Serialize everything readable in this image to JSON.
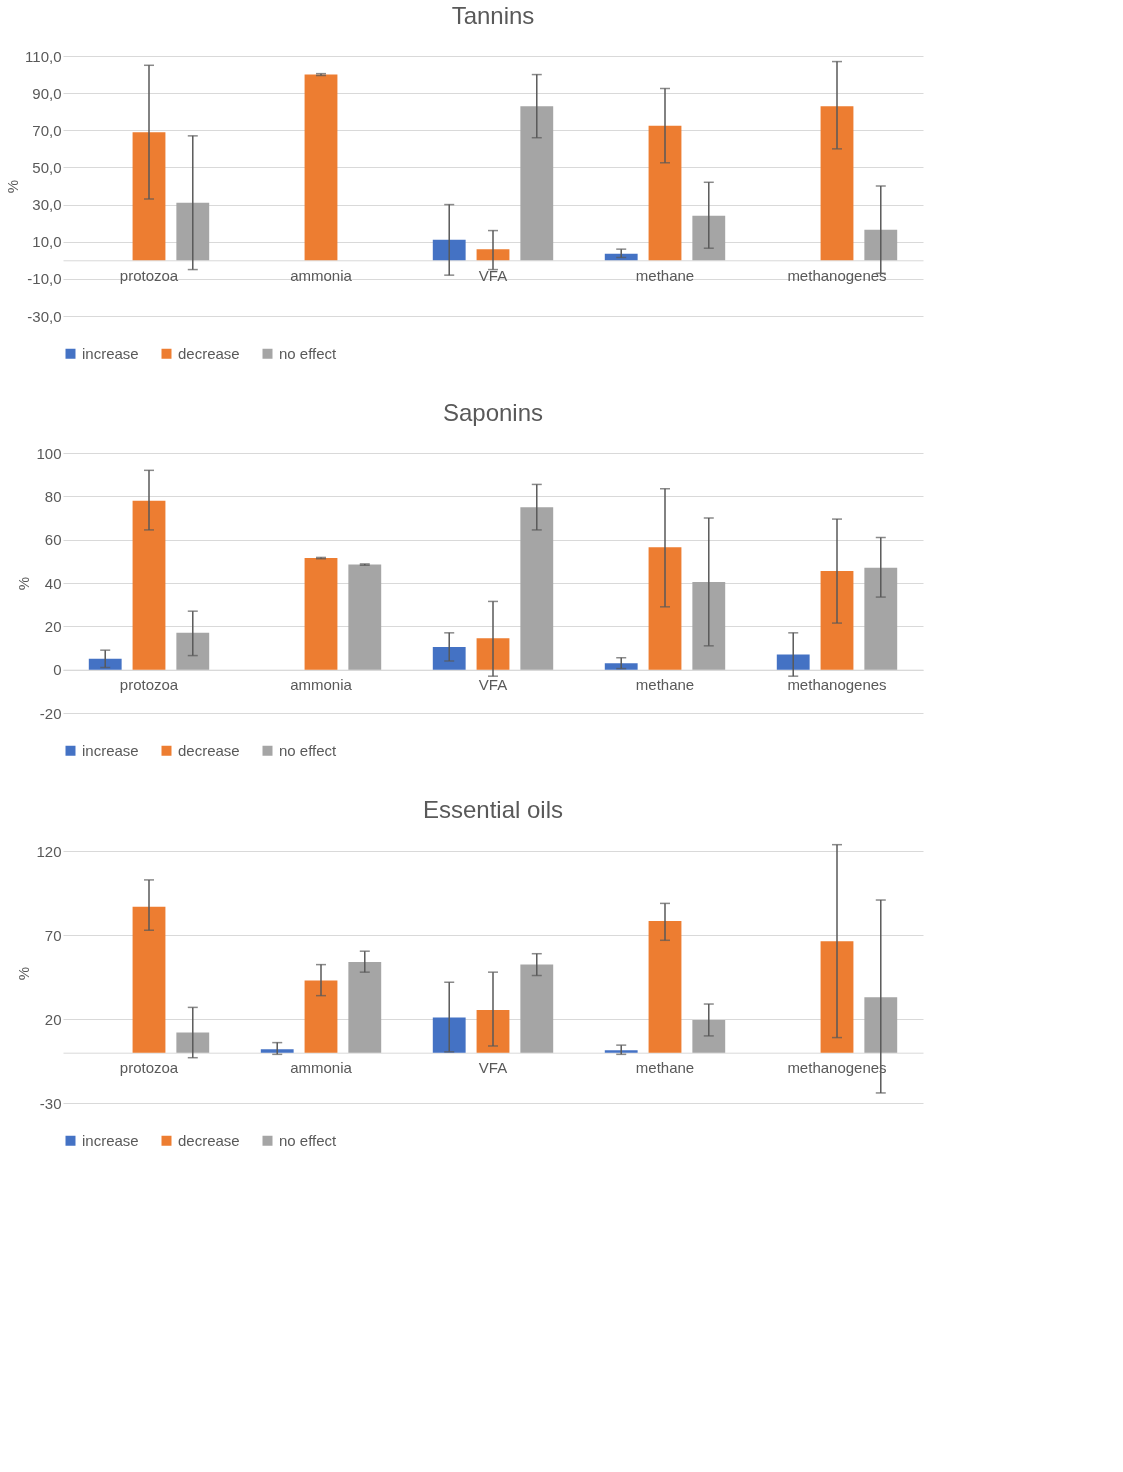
{
  "chart_data": [
    {
      "type": "bar",
      "title": "Tannins",
      "ylabel": "%",
      "categories": [
        "protozoa",
        "ammonia",
        "VFA",
        "methane",
        "methanogenes"
      ],
      "series": [
        {
          "name": "increase",
          "color": "#4472c4",
          "values": [
            0,
            0,
            11,
            3.5,
            0
          ],
          "errors": [
            null,
            null,
            [
              -8,
              30
            ],
            [
              1.5,
              6
            ],
            null
          ]
        },
        {
          "name": "decrease",
          "color": "#ed7d31",
          "values": [
            69,
            100,
            6,
            72.5,
            83
          ],
          "errors": [
            [
              33,
              105
            ],
            [
              99.5,
              100.5
            ],
            [
              -5,
              16
            ],
            [
              52.5,
              92.5
            ],
            [
              60,
              107
            ]
          ]
        },
        {
          "name": "no effect",
          "color": "#a5a5a5",
          "values": [
            31,
            0,
            83,
            24,
            16.5
          ],
          "errors": [
            [
              -5,
              67
            ],
            null,
            [
              66,
              100
            ],
            [
              6.5,
              42
            ],
            [
              -7,
              40
            ]
          ]
        }
      ],
      "ylim": [
        -30,
        110
      ],
      "yticks": [
        {
          "value": -30,
          "label": "-30,0"
        },
        {
          "value": -10,
          "label": "-10,0"
        },
        {
          "value": 10,
          "label": "10,0"
        },
        {
          "value": 30,
          "label": "30,0"
        },
        {
          "value": 50,
          "label": "50,0"
        },
        {
          "value": 70,
          "label": "70,0"
        },
        {
          "value": 90,
          "label": "90,0"
        },
        {
          "value": 110,
          "label": "110,0"
        }
      ],
      "grid": "y",
      "legend": "bottom"
    },
    {
      "type": "bar",
      "title": "Saponins",
      "ylabel": "%",
      "categories": [
        "protozoa",
        "ammonia",
        "VFA",
        "methane",
        "methanogenes"
      ],
      "series": [
        {
          "name": "increase",
          "color": "#4472c4",
          "values": [
            5,
            0,
            10.5,
            3,
            7
          ],
          "errors": [
            [
              1,
              9
            ],
            null,
            [
              4,
              17
            ],
            [
              0.5,
              5.5
            ],
            [
              -3,
              17
            ]
          ]
        },
        {
          "name": "decrease",
          "color": "#ed7d31",
          "values": [
            78,
            51.5,
            14.5,
            56.5,
            45.5
          ],
          "errors": [
            [
              64.5,
              92
            ],
            [
              51.2,
              51.8
            ],
            [
              -3,
              31.5
            ],
            [
              29,
              83.5
            ],
            [
              21.5,
              69.5
            ]
          ]
        },
        {
          "name": "no effect",
          "color": "#a5a5a5",
          "values": [
            17,
            48.5,
            75,
            40.5,
            47
          ],
          "errors": [
            [
              6.5,
              27
            ],
            [
              48.2,
              48.8
            ],
            [
              64.5,
              85.5
            ],
            [
              11,
              70
            ],
            [
              33.5,
              61
            ]
          ]
        }
      ],
      "ylim": [
        -20,
        100
      ],
      "yticks": [
        -20,
        0,
        20,
        40,
        60,
        80,
        100
      ],
      "grid": "y",
      "legend": "bottom"
    },
    {
      "type": "bar",
      "title": "Essential oils",
      "ylabel": "%",
      "categories": [
        "protozoa",
        "ammonia",
        "VFA",
        "methane",
        "methanogenes"
      ],
      "series": [
        {
          "name": "increase",
          "color": "#4472c4",
          "values": [
            0,
            2,
            21,
            1.5,
            0
          ],
          "errors": [
            null,
            [
              -1,
              6
            ],
            [
              0.5,
              42
            ],
            [
              -1,
              4.5
            ],
            null
          ]
        },
        {
          "name": "decrease",
          "color": "#ed7d31",
          "values": [
            87,
            43,
            25.5,
            78.5,
            66.5
          ],
          "errors": [
            [
              73,
              103
            ],
            [
              34,
              52.5
            ],
            [
              4,
              48
            ],
            [
              67,
              89
            ],
            [
              9,
              124
            ]
          ]
        },
        {
          "name": "no effect",
          "color": "#a5a5a5",
          "values": [
            12,
            54,
            52.5,
            19.5,
            33
          ],
          "errors": [
            [
              -3,
              27
            ],
            [
              48,
              60.5
            ],
            [
              46,
              59
            ],
            [
              10,
              29
            ],
            [
              -24,
              91
            ]
          ]
        }
      ],
      "ylim": [
        -30,
        125
      ],
      "yticks": [
        -30,
        20,
        70,
        120
      ],
      "grid": "y",
      "legend": "bottom"
    }
  ]
}
